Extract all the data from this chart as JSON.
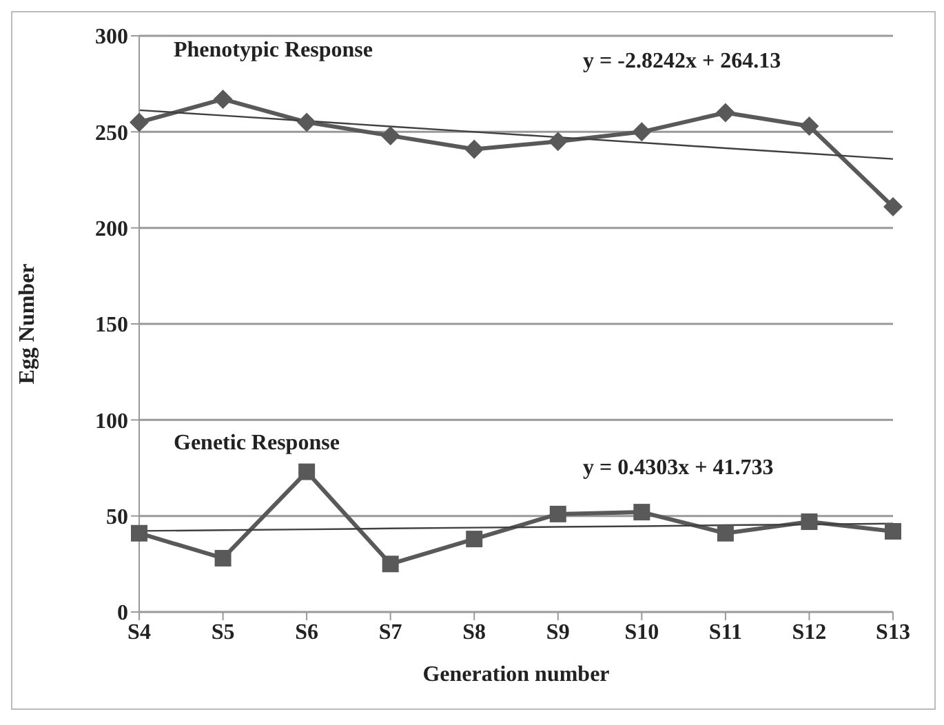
{
  "chart_data": {
    "type": "line",
    "xlabel": "Generation number",
    "ylabel": "Egg Number",
    "categories": [
      "S4",
      "S5",
      "S6",
      "S7",
      "S8",
      "S9",
      "S10",
      "S11",
      "S12",
      "S13"
    ],
    "series": [
      {
        "name": "Phenotypic Response",
        "color": "#595959",
        "marker": "diamond",
        "values": [
          255,
          267,
          255,
          248,
          241,
          245,
          250,
          260,
          253,
          211
        ]
      },
      {
        "type": "line",
        "color": "#404040",
        "marker": "none",
        "values": [
          261.3,
          258.5,
          255.7,
          252.8,
          250.0,
          247.2,
          244.4,
          241.5,
          238.7,
          235.9
        ]
      },
      {
        "name": "Genetic Response",
        "color": "#595959",
        "marker": "square",
        "values": [
          41,
          28,
          73,
          25,
          38,
          51,
          52,
          41,
          47,
          42
        ]
      },
      {
        "type": "line",
        "color": "#404040",
        "marker": "none",
        "values": [
          42.2,
          42.6,
          43.0,
          43.5,
          43.9,
          44.3,
          44.7,
          45.2,
          45.6,
          46.0
        ]
      }
    ],
    "annotations": [
      "y = -2.8242x + 264.13",
      "y = 0.4303x + 41.733"
    ],
    "ylim": [
      0,
      300
    ],
    "yticks": [
      0,
      50,
      100,
      150,
      200,
      250,
      300
    ],
    "grid": "y",
    "line_style": "solid"
  }
}
